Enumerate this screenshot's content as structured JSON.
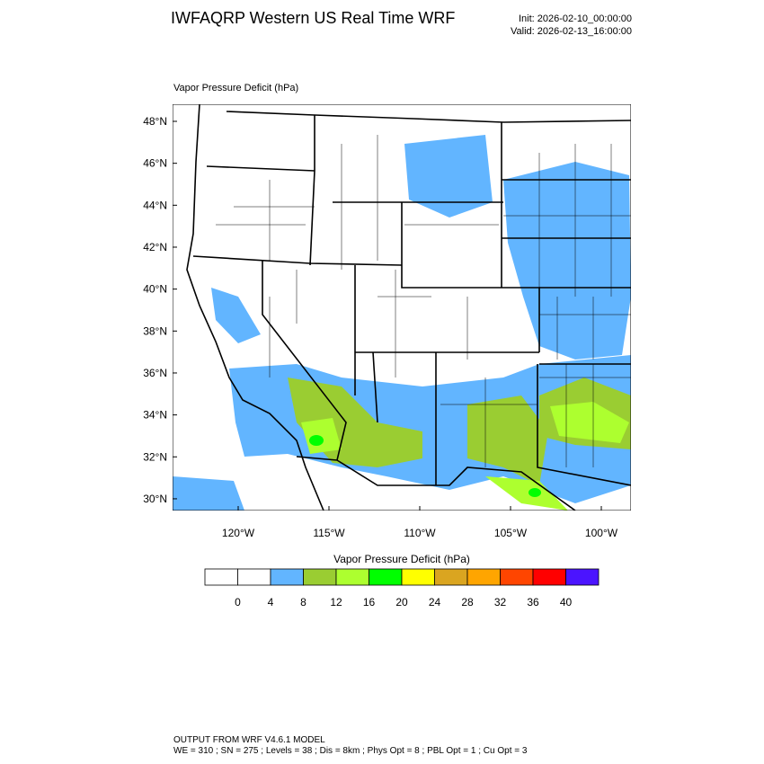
{
  "title": "IWFAQRP Western US Real Time WRF",
  "init": "Init: 2026-02-10_00:00:00",
  "valid": "Valid: 2026-02-13_16:00:00",
  "panel_label": "Vapor Pressure Deficit   (hPa)",
  "lat_ticks": [
    {
      "value": 48,
      "label": "48°N"
    },
    {
      "value": 46,
      "label": "46°N"
    },
    {
      "value": 44,
      "label": "44°N"
    },
    {
      "value": 42,
      "label": "42°N"
    },
    {
      "value": 40,
      "label": "40°N"
    },
    {
      "value": 38,
      "label": "38°N"
    },
    {
      "value": 36,
      "label": "36°N"
    },
    {
      "value": 34,
      "label": "34°N"
    },
    {
      "value": 32,
      "label": "32°N"
    },
    {
      "value": 30,
      "label": "30°N"
    }
  ],
  "lon_ticks": [
    {
      "value": -120,
      "label": "120°W"
    },
    {
      "value": -115,
      "label": "115°W"
    },
    {
      "value": -110,
      "label": "110°W"
    },
    {
      "value": -105,
      "label": "105°W"
    },
    {
      "value": -100,
      "label": "100°W"
    }
  ],
  "colorbar": {
    "title": "Vapor Pressure Deficit  (hPa)",
    "colors": [
      "#ffffff",
      "#ffffff",
      "#62b5ff",
      "#9acd32",
      "#adff2f",
      "#00ff00",
      "#ffff00",
      "#daa520",
      "#ffa500",
      "#ff4500",
      "#ff0000",
      "#4b14ff"
    ],
    "levels": [
      0,
      4,
      8,
      12,
      16,
      20,
      24,
      28,
      32,
      36,
      40
    ]
  },
  "footer": {
    "line1": "OUTPUT FROM WRF V4.6.1 MODEL",
    "line2": "WE = 310 ; SN = 275 ; Levels = 38 ; Dis = 8km ; Phys Opt = 8 ; PBL Opt = 1 ; Cu Opt = 3"
  }
}
